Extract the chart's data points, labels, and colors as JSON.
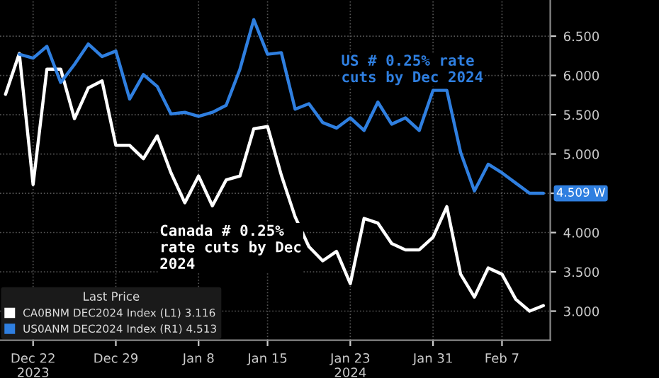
{
  "chart_data": {
    "type": "line",
    "categories": [
      null,
      null,
      "Dec 22\n2023",
      null,
      null,
      null,
      null,
      null,
      "Dec 29",
      null,
      null,
      null,
      null,
      null,
      "Jan 8",
      null,
      null,
      null,
      null,
      "Jan 15",
      null,
      null,
      null,
      null,
      null,
      "Jan 23\n2024",
      null,
      null,
      null,
      null,
      null,
      "Jan 31",
      null,
      null,
      null,
      null,
      "Feb 7",
      null,
      null,
      null
    ],
    "series": [
      {
        "name": "CA0BNM DEC2024 Index (L1) 3.116",
        "color": "#ffffff",
        "values": [
          5.76,
          6.28,
          4.61,
          6.08,
          6.08,
          5.45,
          5.84,
          5.93,
          5.11,
          5.11,
          4.94,
          5.23,
          4.76,
          4.38,
          4.72,
          4.34,
          4.67,
          4.72,
          5.32,
          5.35,
          4.73,
          4.2,
          3.82,
          3.64,
          3.76,
          3.35,
          4.18,
          4.12,
          3.86,
          3.78,
          3.78,
          3.94,
          4.33,
          3.47,
          3.18,
          3.55,
          3.47,
          3.15,
          3.0,
          3.07
        ]
      },
      {
        "name": "US0ANM DEC2024 Index (R1) 4.513",
        "color": "#2f7fe0",
        "values": [
          null,
          6.27,
          6.22,
          6.37,
          5.91,
          6.14,
          6.4,
          6.24,
          6.31,
          5.7,
          6.01,
          5.86,
          5.51,
          5.53,
          5.48,
          5.53,
          5.62,
          6.08,
          6.71,
          6.27,
          6.29,
          5.57,
          5.64,
          5.4,
          5.33,
          5.46,
          5.3,
          5.66,
          5.38,
          5.46,
          5.3,
          5.81,
          5.81,
          5.02,
          4.53,
          4.87,
          4.76,
          4.63,
          4.5,
          4.5
        ]
      }
    ],
    "ylim": [
      2.63,
      6.96
    ],
    "yticks": [
      {
        "value": 3,
        "label": "3.000"
      },
      {
        "value": 3.5,
        "label": "3.500"
      },
      {
        "value": 4,
        "label": "4.000"
      },
      {
        "value": 4.5,
        "label": null
      },
      {
        "value": 5,
        "label": "5.000"
      },
      {
        "value": 5.5,
        "label": "5.500"
      },
      {
        "value": 6,
        "label": "6.000"
      },
      {
        "value": 6.5,
        "label": "6.500"
      }
    ],
    "annotations": [
      "US # 0.25% rate\ncuts by Dec 2024",
      "Canada # 0.25%\nrate cuts by Dec\n2024",
      "4.509 W"
    ],
    "legend_title": "Last Price",
    "legend": "bottom left",
    "grid": true
  }
}
